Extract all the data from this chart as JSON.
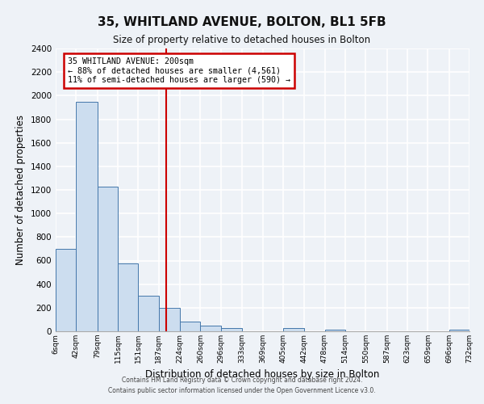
{
  "title": "35, WHITLAND AVENUE, BOLTON, BL1 5FB",
  "subtitle": "Size of property relative to detached houses in Bolton",
  "xlabel": "Distribution of detached houses by size in Bolton",
  "ylabel": "Number of detached properties",
  "bin_edges": [
    6,
    42,
    79,
    115,
    151,
    187,
    224,
    260,
    296,
    333,
    369,
    405,
    442,
    478,
    514,
    550,
    587,
    623,
    659,
    696,
    732
  ],
  "bin_counts": [
    700,
    1950,
    1230,
    575,
    300,
    200,
    80,
    45,
    30,
    0,
    0,
    25,
    0,
    15,
    0,
    0,
    0,
    0,
    0,
    15
  ],
  "bar_color": "#ccddef",
  "bar_edge_color": "#4477aa",
  "property_line_x": 200,
  "property_line_color": "#cc0000",
  "ylim": [
    0,
    2400
  ],
  "yticks": [
    0,
    200,
    400,
    600,
    800,
    1000,
    1200,
    1400,
    1600,
    1800,
    2000,
    2200,
    2400
  ],
  "annotation_title": "35 WHITLAND AVENUE: 200sqm",
  "annotation_line1": "← 88% of detached houses are smaller (4,561)",
  "annotation_line2": "11% of semi-detached houses are larger (590) →",
  "annotation_box_color": "#ffffff",
  "annotation_box_edge": "#cc0000",
  "footer1": "Contains HM Land Registry data © Crown copyright and database right 2024.",
  "footer2": "Contains public sector information licensed under the Open Government Licence v3.0.",
  "bg_color": "#eef2f7",
  "grid_color": "#ffffff",
  "plot_bg_color": "#eef2f7"
}
